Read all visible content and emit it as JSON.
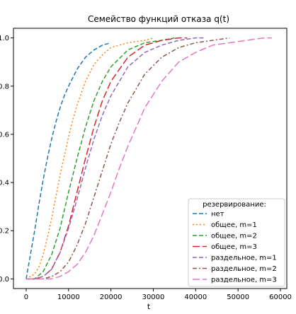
{
  "chart_data": {
    "type": "line",
    "title": "Семейство функций отказа q(t)",
    "xlabel": "t",
    "ylabel": "",
    "xlim": [
      -3000,
      61500
    ],
    "ylim": [
      -0.04,
      1.04
    ],
    "x_ticks": [
      0,
      10000,
      20000,
      30000,
      40000,
      50000,
      60000
    ],
    "x_tick_labels": [
      "0",
      "10000",
      "20000",
      "30000",
      "40000",
      "50000",
      "60000"
    ],
    "y_ticks": [
      0.0,
      0.2,
      0.4,
      0.6,
      0.8,
      1.0
    ],
    "y_tick_labels": [
      "0.0",
      "0.2",
      "0.4",
      "0.6",
      "0.8",
      "1.0"
    ],
    "grid": false,
    "legend": {
      "title": "резервирование:",
      "placement": "bottom-right"
    },
    "series": [
      {
        "name": "нет",
        "color": "#1f77b4",
        "linestyle": "dashed",
        "x": [
          0,
          1000,
          2000,
          3000,
          4000,
          5000,
          6000,
          7000,
          8000,
          9000,
          10000,
          12000,
          14000,
          16000,
          18000,
          20000
        ],
        "y": [
          0.0,
          0.1,
          0.2,
          0.31,
          0.41,
          0.5,
          0.58,
          0.65,
          0.71,
          0.76,
          0.8,
          0.87,
          0.92,
          0.95,
          0.97,
          0.98
        ]
      },
      {
        "name": "общее, m=1",
        "color": "#ff7f0e",
        "linestyle": "dotted",
        "x": [
          0,
          2000,
          3000,
          4000,
          5000,
          6000,
          7000,
          8000,
          9000,
          10000,
          11000,
          12000,
          14000,
          16000,
          18000,
          20000,
          24000,
          28000,
          30000
        ],
        "y": [
          0.0,
          0.02,
          0.05,
          0.1,
          0.17,
          0.25,
          0.34,
          0.43,
          0.51,
          0.59,
          0.66,
          0.72,
          0.82,
          0.89,
          0.93,
          0.96,
          0.98,
          0.99,
          1.0
        ]
      },
      {
        "name": "общее, m=2",
        "color": "#2ca02c",
        "linestyle": "dashed",
        "x": [
          0,
          2000,
          4000,
          6000,
          8000,
          10000,
          12000,
          14000,
          16000,
          18000,
          20000,
          24000,
          28000,
          32000,
          35000
        ],
        "y": [
          0.0,
          0.0,
          0.03,
          0.1,
          0.21,
          0.36,
          0.5,
          0.63,
          0.74,
          0.82,
          0.88,
          0.95,
          0.98,
          0.99,
          1.0
        ]
      },
      {
        "name": "общее, m=3",
        "color": "#d62728",
        "linestyle": "long-dash",
        "x": [
          0,
          2000,
          4000,
          6000,
          8000,
          10000,
          12000,
          14000,
          16000,
          18000,
          20000,
          24000,
          28000,
          32000,
          36000,
          38000
        ],
        "y": [
          0.0,
          0.0,
          0.01,
          0.04,
          0.11,
          0.22,
          0.36,
          0.5,
          0.63,
          0.74,
          0.82,
          0.92,
          0.97,
          0.99,
          1.0,
          1.0
        ]
      },
      {
        "name": "раздельное, m=1",
        "color": "#9467bd",
        "linestyle": "dashed",
        "x": [
          0,
          2000,
          4000,
          6000,
          8000,
          10000,
          12000,
          14000,
          16000,
          18000,
          20000,
          24000,
          28000,
          32000,
          36000,
          40000,
          42000
        ],
        "y": [
          0.0,
          0.0,
          0.01,
          0.04,
          0.11,
          0.21,
          0.33,
          0.46,
          0.58,
          0.68,
          0.76,
          0.88,
          0.94,
          0.97,
          0.99,
          1.0,
          1.0
        ]
      },
      {
        "name": "раздельное, m=2",
        "color": "#8c564b",
        "linestyle": "dash-dot",
        "x": [
          0,
          2000,
          4000,
          6000,
          8000,
          10000,
          12000,
          14000,
          16000,
          18000,
          20000,
          22000,
          24000,
          28000,
          32000,
          36000,
          40000,
          44000,
          48000
        ],
        "y": [
          0.0,
          0.0,
          0.0,
          0.01,
          0.03,
          0.07,
          0.14,
          0.23,
          0.34,
          0.45,
          0.56,
          0.65,
          0.73,
          0.85,
          0.92,
          0.96,
          0.98,
          0.99,
          1.0
        ]
      },
      {
        "name": "раздельное, m=3",
        "color": "#e377c2",
        "linestyle": "long-dash",
        "x": [
          0,
          2000,
          4000,
          6000,
          8000,
          10000,
          12000,
          14000,
          16000,
          18000,
          20000,
          22000,
          24000,
          26000,
          28000,
          32000,
          36000,
          40000,
          44000,
          48000,
          52000,
          56000,
          58000
        ],
        "y": [
          0.0,
          0.0,
          0.0,
          0.0,
          0.01,
          0.03,
          0.06,
          0.11,
          0.18,
          0.27,
          0.36,
          0.46,
          0.55,
          0.63,
          0.71,
          0.82,
          0.9,
          0.94,
          0.97,
          0.98,
          0.99,
          1.0,
          1.0
        ]
      }
    ]
  }
}
